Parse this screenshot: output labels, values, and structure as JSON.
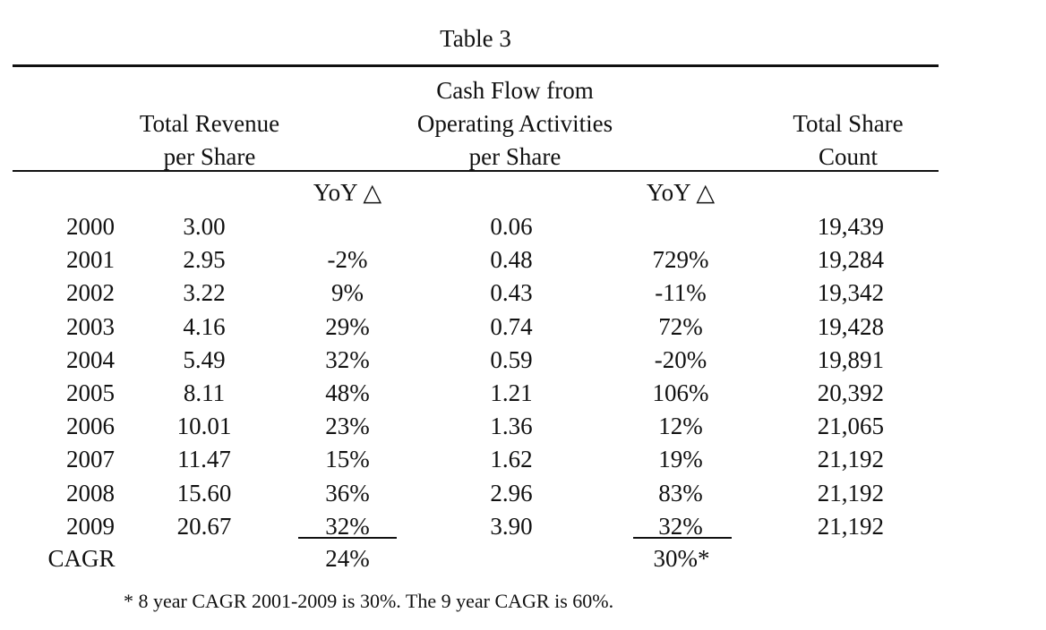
{
  "table": {
    "title": "Table 3",
    "headers": {
      "revenue_line1": "Total Revenue",
      "revenue_line2": "per Share",
      "cashflow_line1": "Cash Flow from",
      "cashflow_line2": "Operating Activities",
      "cashflow_line3": "per Share",
      "shares_line1": "Total Share",
      "shares_line2": "Count",
      "rev_yoy": "YoY △",
      "cf_yoy": "YoY △"
    },
    "rows": [
      {
        "year": "2000",
        "revenue": "3.00",
        "rev_yoy": "",
        "cashflow": "0.06",
        "cf_yoy": "",
        "shares": "19,439"
      },
      {
        "year": "2001",
        "revenue": "2.95",
        "rev_yoy": "-2%",
        "cashflow": "0.48",
        "cf_yoy": "729%",
        "shares": "19,284"
      },
      {
        "year": "2002",
        "revenue": "3.22",
        "rev_yoy": "9%",
        "cashflow": "0.43",
        "cf_yoy": "-11%",
        "shares": "19,342"
      },
      {
        "year": "2003",
        "revenue": "4.16",
        "rev_yoy": "29%",
        "cashflow": "0.74",
        "cf_yoy": "72%",
        "shares": "19,428"
      },
      {
        "year": "2004",
        "revenue": "5.49",
        "rev_yoy": "32%",
        "cashflow": "0.59",
        "cf_yoy": "-20%",
        "shares": "19,891"
      },
      {
        "year": "2005",
        "revenue": "8.11",
        "rev_yoy": "48%",
        "cashflow": "1.21",
        "cf_yoy": "106%",
        "shares": "20,392"
      },
      {
        "year": "2006",
        "revenue": "10.01",
        "rev_yoy": "23%",
        "cashflow": "1.36",
        "cf_yoy": "12%",
        "shares": "21,065"
      },
      {
        "year": "2007",
        "revenue": "11.47",
        "rev_yoy": "15%",
        "cashflow": "1.62",
        "cf_yoy": "19%",
        "shares": "21,192"
      },
      {
        "year": "2008",
        "revenue": "15.60",
        "rev_yoy": "36%",
        "cashflow": "2.96",
        "cf_yoy": "83%",
        "shares": "21,192"
      },
      {
        "year": "2009",
        "revenue": "20.67",
        "rev_yoy": "32%",
        "cashflow": "3.90",
        "cf_yoy": "32%",
        "shares": "21,192"
      }
    ],
    "cagr": {
      "label": "CAGR",
      "rev_yoy": "24%",
      "cf_yoy": "30%*"
    },
    "footnote": "* 8 year CAGR 2001-2009 is 30%. The 9 year CAGR is 60%."
  }
}
